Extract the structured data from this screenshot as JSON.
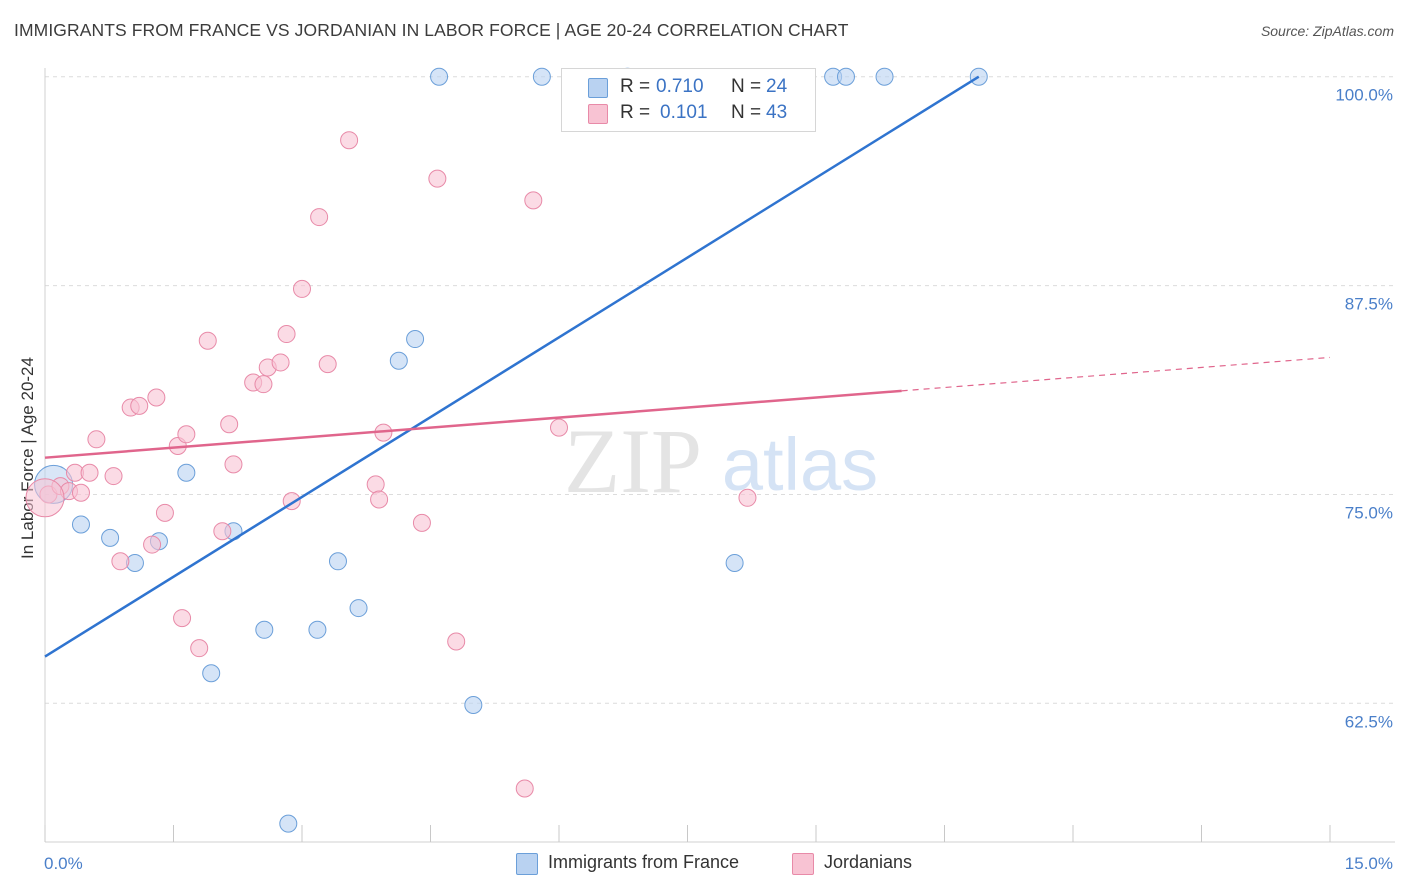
{
  "header": {
    "title": "IMMIGRANTS FROM FRANCE VS JORDANIAN IN LABOR FORCE | AGE 20-24 CORRELATION CHART",
    "source": "Source: ZipAtlas.com"
  },
  "watermark": {
    "zip": "ZIP",
    "atlas": "atlas"
  },
  "legend_stats": [
    {
      "r_label": "R =",
      "r_value": "0.710",
      "n_label": "N =",
      "n_value": "24"
    },
    {
      "r_label": "R =",
      "r_value": "0.101",
      "n_label": "N =",
      "n_value": "43"
    }
  ],
  "colors": {
    "blue_fill": "#b9d2f1",
    "blue_stroke": "#6b9fd9",
    "blue_line": "#2f74d0",
    "pink_fill": "#f8c3d3",
    "pink_stroke": "#e88aa8",
    "pink_line": "#e0658c",
    "grid": "#dcdcdc",
    "tick_text": "#4a7fc9"
  },
  "chart_data": {
    "type": "scatter",
    "title": "IMMIGRANTS FROM FRANCE VS JORDANIAN IN LABOR FORCE | AGE 20-24 CORRELATION CHART",
    "xlabel": "",
    "ylabel": "In Labor Force | Age 20-24",
    "xlim": [
      0,
      15
    ],
    "ylim": [
      54.2,
      101
    ],
    "x_tick_labels": [
      {
        "value": 0,
        "label": "0.0%"
      },
      {
        "value": 15,
        "label": "15.0%"
      }
    ],
    "y_tick_labels": [
      {
        "value": 100,
        "label": "100.0%"
      },
      {
        "value": 87.5,
        "label": "87.5%"
      },
      {
        "value": 75,
        "label": "75.0%"
      },
      {
        "value": 62.5,
        "label": "62.5%"
      }
    ],
    "grid": true,
    "legend_position": "top-center",
    "series": [
      {
        "name": "Immigrants from France",
        "color": "blue",
        "r": 0.71,
        "n": 24,
        "trend": {
          "x": [
            0,
            10.9
          ],
          "y": [
            65.3,
            100.0
          ]
        },
        "points": [
          [
            0.1,
            75.6
          ],
          [
            0.42,
            73.2
          ],
          [
            0.76,
            72.4
          ],
          [
            1.05,
            70.9
          ],
          [
            1.33,
            72.2
          ],
          [
            1.65,
            76.3
          ],
          [
            2.2,
            72.8
          ],
          [
            1.94,
            64.3
          ],
          [
            2.56,
            66.9
          ],
          [
            2.84,
            55.3
          ],
          [
            3.18,
            66.9
          ],
          [
            3.42,
            71.0
          ],
          [
            3.66,
            68.2
          ],
          [
            4.13,
            83.0
          ],
          [
            4.32,
            84.3
          ],
          [
            4.6,
            100.0
          ],
          [
            5.0,
            62.4
          ],
          [
            5.8,
            100.0
          ],
          [
            8.05,
            70.9
          ],
          [
            6.8,
            100.0
          ],
          [
            9.2,
            100.0
          ],
          [
            9.35,
            100.0
          ],
          [
            9.8,
            100.0
          ],
          [
            10.9,
            100.0
          ]
        ]
      },
      {
        "name": "Jordanians",
        "color": "pink",
        "r": 0.101,
        "n": 43,
        "trend": {
          "x": [
            0,
            10.0
          ],
          "y": [
            77.2,
            81.2
          ]
        },
        "trend_dashed": {
          "x": [
            10.0,
            15.0
          ],
          "y": [
            81.2,
            83.2
          ]
        },
        "points": [
          [
            0.04,
            75.0
          ],
          [
            0.18,
            75.5
          ],
          [
            0.28,
            75.2
          ],
          [
            0.35,
            76.3
          ],
          [
            0.42,
            75.1
          ],
          [
            0.52,
            76.3
          ],
          [
            0.6,
            78.3
          ],
          [
            0.8,
            76.1
          ],
          [
            0.88,
            71.0
          ],
          [
            1.0,
            80.2
          ],
          [
            1.1,
            80.3
          ],
          [
            1.25,
            72.0
          ],
          [
            1.3,
            80.8
          ],
          [
            1.4,
            73.9
          ],
          [
            1.55,
            77.9
          ],
          [
            1.6,
            67.6
          ],
          [
            1.65,
            78.6
          ],
          [
            1.8,
            65.8
          ],
          [
            1.9,
            84.2
          ],
          [
            2.07,
            72.8
          ],
          [
            2.15,
            79.2
          ],
          [
            2.2,
            76.8
          ],
          [
            2.43,
            81.7
          ],
          [
            2.55,
            81.6
          ],
          [
            2.6,
            82.6
          ],
          [
            2.75,
            82.9
          ],
          [
            2.82,
            84.6
          ],
          [
            2.88,
            74.6
          ],
          [
            3.0,
            87.3
          ],
          [
            3.2,
            91.6
          ],
          [
            3.3,
            82.8
          ],
          [
            3.55,
            96.2
          ],
          [
            3.86,
            75.6
          ],
          [
            3.9,
            74.7
          ],
          [
            3.95,
            78.7
          ],
          [
            4.4,
            73.3
          ],
          [
            4.58,
            93.9
          ],
          [
            4.8,
            66.2
          ],
          [
            5.6,
            57.4
          ],
          [
            5.7,
            92.6
          ],
          [
            6.0,
            79.0
          ],
          [
            8.2,
            74.8
          ],
          [
            0.0,
            74.8
          ]
        ]
      }
    ]
  },
  "legend_bottom": [
    {
      "label": "Immigrants from France",
      "color": "blue"
    },
    {
      "label": "Jordanians",
      "color": "pink"
    }
  ]
}
